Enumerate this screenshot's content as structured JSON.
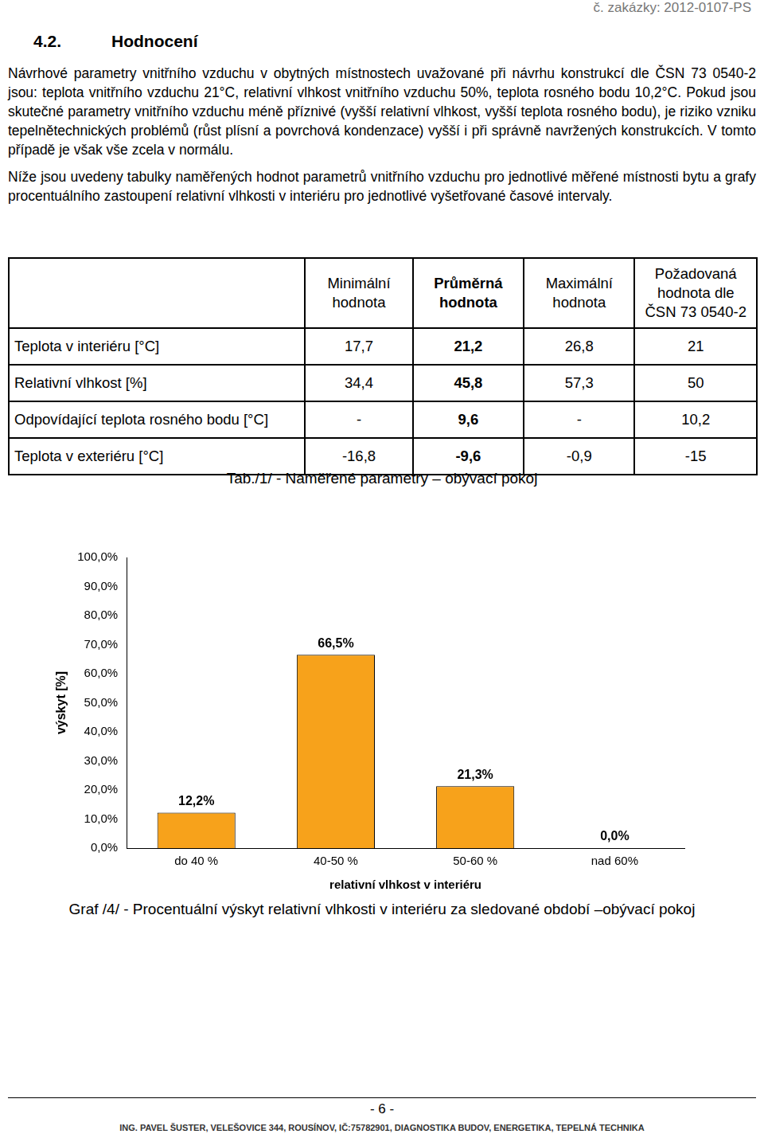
{
  "header": {
    "order_number": "č. zakázky: 2012-0107-PS"
  },
  "section": {
    "number": "4.2.",
    "title": "Hodnocení"
  },
  "paragraphs": [
    "Návrhové parametry vnitřního vzduchu v obytných místnostech uvažované při návrhu konstrukcí dle ČSN 73 0540-2 jsou: teplota vnitřního vzduchu 21°C, relativní vlhkost vnitřního vzduchu 50%, teplota rosného bodu 10,2°C. Pokud jsou skutečné parametry vnitřního vzduchu méně příznivé (vyšší relativní vlhkost, vyšší teplota rosného bodu), je riziko vzniku tepelnětechnických problémů (růst plísní a povrchová kondenzace) vyšší i při správně navržených konstrukcích. V tomto případě je však vše zcela v normálu.",
    "Níže jsou uvedeny tabulky naměřených hodnot parametrů vnitřního vzduchu pro jednotlivé měřené místnosti bytu a grafy procentuálního zastoupení relativní vlhkosti v interiéru pro jednotlivé vyšetřované časové intervaly."
  ],
  "table": {
    "columns": [
      "Minimální hodnota",
      "Průměrná hodnota",
      "Maximální hodnota",
      "Požadovaná hodnota dle ČSN 73 0540-2"
    ],
    "rows": [
      [
        "Teplota v interiéru [°C]",
        "17,7",
        "21,2",
        "26,8",
        "21"
      ],
      [
        "Relativní vlhkost [%]",
        "34,4",
        "45,8",
        "57,3",
        "50"
      ],
      [
        "Odpovídající teplota rosného bodu [°C]",
        "-",
        "9,6",
        "-",
        "10,2"
      ],
      [
        "Teplota v exteriéru [°C]",
        "-16,8",
        "-9,6",
        "-0,9",
        "-15"
      ]
    ],
    "caption": "Tab./1/ - Naměřené parametry – obývací pokoj"
  },
  "chart_data": {
    "type": "bar",
    "title": "Graf /4/ - Procentuální výskyt relativní vlhkosti v interiéru za sledované období –obývací pokoj",
    "x_label": "relativní vlhkost v interiéru",
    "y_label": "výskyt [%]",
    "categories": [
      "do 40 %",
      "40-50 %",
      "50-60 %",
      "nad 60%"
    ],
    "values": [
      12.2,
      66.5,
      21.3,
      0.0
    ],
    "value_labels": [
      "12,2%",
      "66,5%",
      "21,3%",
      "0,0%"
    ],
    "data_labels": true,
    "color": "#f7a21b",
    "ylim": [
      0,
      100
    ],
    "yticks": [
      {
        "value": 0,
        "label": "0,0%"
      },
      {
        "value": 10,
        "label": "10,0%"
      },
      {
        "value": 20,
        "label": "20,0%"
      },
      {
        "value": 30,
        "label": "30,0%"
      },
      {
        "value": 40,
        "label": "40,0%"
      },
      {
        "value": 50,
        "label": "50,0%"
      },
      {
        "value": 60,
        "label": "60,0%"
      },
      {
        "value": 70,
        "label": "70,0%"
      },
      {
        "value": 80,
        "label": "80,0%"
      },
      {
        "value": 90,
        "label": "90,0%"
      },
      {
        "value": 100,
        "label": "100,0%"
      }
    ],
    "grid": false
  },
  "footer": {
    "page": "- 6 -",
    "text": "ING. PAVEL ŠUSTER, VELEŠOVICE 344, ROUSÍNOV, IČ:75782901, DIAGNOSTIKA BUDOV, ENERGETIKA, TEPELNÁ TECHNIKA"
  }
}
